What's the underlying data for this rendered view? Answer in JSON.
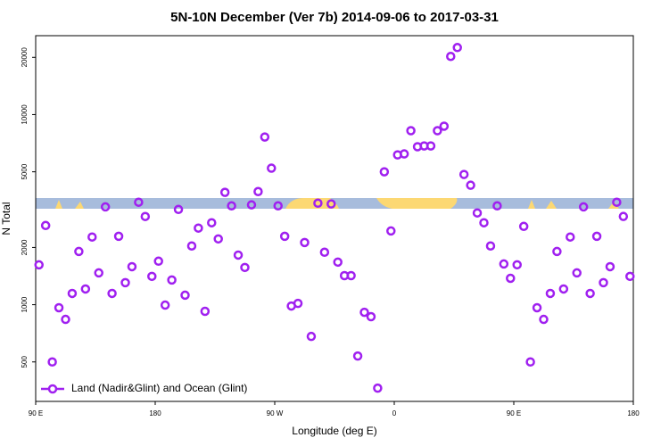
{
  "chart_data": {
    "type": "scatter",
    "log_y": true,
    "title": "5N-10N December (Ver 7b)   2014-09-06 to 2017-03-31",
    "x_label": "Longitude (deg E)",
    "y_label": "N Total",
    "legend": "bottom-left",
    "xlim": [
      90,
      540
    ],
    "xticks": [
      {
        "value": 90,
        "label": "90 E"
      },
      {
        "value": 180,
        "label": "180"
      },
      {
        "value": 270,
        "label": "90 W"
      },
      {
        "value": 360,
        "label": "0"
      },
      {
        "value": 450,
        "label": "90 E"
      },
      {
        "value": 540,
        "label": "180"
      }
    ],
    "ylim": [
      310,
      26000
    ],
    "yticks": [
      500,
      1000,
      2000,
      5000,
      10000,
      20000
    ],
    "series": [
      {
        "name": "Land (Nadir&Glint) and Ocean (Glint)",
        "color": "#a020f0",
        "x": [
          92.5,
          97.5,
          102.5,
          107.5,
          112.5,
          117.5,
          122.5,
          127.5,
          132.5,
          137.5,
          142.5,
          147.5,
          152.5,
          157.5,
          162.5,
          167.5,
          172.5,
          177.5,
          182.5,
          187.5,
          192.5,
          197.5,
          202.5,
          207.5,
          212.5,
          217.5,
          222.5,
          227.5,
          232.5,
          237.5,
          242.5,
          247.5,
          252.5,
          257.5,
          262.5,
          267.5,
          272.5,
          277.5,
          282.5,
          287.5,
          292.5,
          297.5,
          302.5,
          307.5,
          312.5,
          317.5,
          322.5,
          327.5,
          332.5,
          337.5,
          342.5,
          347.5,
          352.5,
          357.5,
          362.5,
          367.5,
          372.5,
          377.5,
          382.5,
          387.5,
          392.5,
          397.5,
          402.5,
          407.5,
          412.5,
          417.5,
          422.5,
          427.5,
          432.5,
          437.5,
          442.5,
          447.5,
          452.5,
          457.5,
          462.5,
          467.5,
          472.5,
          477.5,
          482.5,
          487.5,
          492.5,
          497.5,
          502.5,
          507.5,
          512.5,
          517.5,
          522.5,
          527.5,
          532.5,
          537.5
        ],
        "values": [
          1620,
          2610,
          500,
          964,
          837,
          1146,
          1905,
          1210,
          2270,
          1470,
          3270,
          1146,
          2290,
          1306,
          1585,
          3460,
          2910,
          1409,
          1694,
          995,
          1349,
          3170,
          1122,
          2037,
          2529,
          923,
          2698,
          2218,
          3899,
          3311,
          1824,
          1570,
          3350,
          3936,
          7620,
          5224,
          3311,
          2290,
          984,
          1016,
          2124,
          681,
          3420,
          1888,
          3388,
          1675,
          1422,
          1422,
          537,
          912,
          865,
          364,
          5000,
          2443,
          6138,
          6210,
          8226,
          6775,
          6840,
          6840,
          8226,
          8690,
          20230,
          22520,
          4842,
          4250,
          3039,
          2698,
          2037,
          3311,
          1638,
          1377,
          1622,
          2582,
          500,
          964,
          837,
          1146,
          1905,
          1210,
          2270,
          1470,
          3270,
          1146,
          2290,
          1306,
          1585,
          3459,
          2911,
          1409
        ]
      }
    ]
  }
}
